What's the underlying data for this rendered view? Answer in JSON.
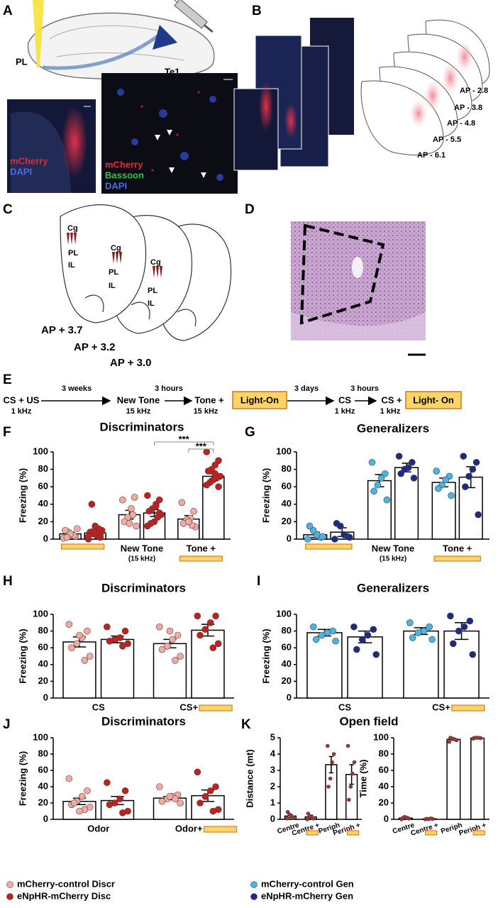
{
  "panel_letters": [
    "A",
    "B",
    "C",
    "D",
    "E",
    "F",
    "G",
    "H",
    "I",
    "J",
    "K"
  ],
  "panel_A": {
    "schematic": [
      "PL",
      "Te1"
    ],
    "image_1": [
      "mCherry",
      "DAPI"
    ],
    "image_2": [
      "mCherry",
      "Bassoon",
      "DAPI"
    ]
  },
  "panel_B": {
    "sections": [
      "AP - 2.8",
      "AP - 3.8",
      "AP - 4.8",
      "AP - 5.5",
      "AP - 6.1"
    ]
  },
  "panel_C": {
    "sections": [
      {
        "regions": [
          "Cg",
          "PL",
          "IL"
        ],
        "label": "AP + 3.7"
      },
      {
        "regions": [
          "Cg",
          "PL",
          "IL"
        ],
        "label": "AP + 3.2"
      },
      {
        "regions": [
          "Cg",
          "PL",
          "IL"
        ],
        "label": "AP + 3.0"
      }
    ]
  },
  "timeline": {
    "steps": [
      {
        "text": "CS + US",
        "sub": "1 kHz"
      },
      {
        "text": "New Tone",
        "sub": "15 kHz"
      },
      {
        "text": "Tone +",
        "sub": "15 kHz",
        "light": "Light-On"
      },
      {
        "text": "CS",
        "sub": "1 kHz"
      },
      {
        "text": "CS +",
        "sub": "1 kHz",
        "light": "Light- On"
      }
    ],
    "intervals": [
      "3 weeks",
      "3 hours",
      "3 days",
      "3 hours"
    ]
  },
  "chart_data": [
    {
      "type": "bar",
      "title": "Discriminators",
      "ylabel": "Freezing (%)",
      "ylim": [
        0,
        100
      ],
      "yticks": [
        0,
        20,
        40,
        60,
        80,
        100
      ],
      "categories": [
        null,
        "New Tone",
        "Tone +"
      ],
      "category_notes": [
        null,
        "(15 kHz)",
        null
      ],
      "light_on": [
        true,
        false,
        true
      ],
      "light_position": "below",
      "series": [
        {
          "color": "#f4aaa0",
          "values": [
            6,
            28,
            23
          ],
          "errors": [
            2,
            5,
            4
          ],
          "points": [
            [
              1,
              3,
              5,
              8,
              10,
              12,
              4,
              6,
              2
            ],
            [
              45,
              48,
              35,
              25,
              20,
              15,
              28,
              18
            ],
            [
              42,
              32,
              24,
              22,
              18,
              14,
              16,
              20
            ]
          ]
        },
        {
          "color": "#c0201e",
          "values": [
            7,
            30,
            72
          ],
          "errors": [
            3,
            4,
            3
          ],
          "points": [
            [
              0,
              2,
              4,
              6,
              8,
              10,
              12,
              15,
              40,
              3,
              5,
              7,
              9
            ],
            [
              50,
              45,
              40,
              35,
              32,
              28,
              25,
              20,
              18,
              15,
              30,
              38
            ],
            [
              100,
              90,
              85,
              80,
              78,
              72,
              70,
              68,
              65,
              62,
              60,
              75
            ]
          ]
        }
      ],
      "annotations": [
        "***",
        "***"
      ]
    },
    {
      "type": "bar",
      "title": "Generalizers",
      "ylabel": "Freezing (%)",
      "ylim": [
        0,
        100
      ],
      "yticks": [
        0,
        20,
        40,
        60,
        80,
        100
      ],
      "categories": [
        null,
        "New Tone",
        "Tone +"
      ],
      "category_notes": [
        null,
        "(15 kHz)",
        null
      ],
      "light_on": [
        true,
        false,
        true
      ],
      "light_position": "below",
      "series": [
        {
          "color": "#4db3e0",
          "values": [
            5,
            67,
            65
          ],
          "errors": [
            3,
            7,
            5
          ],
          "points": [
            [
              0,
              2,
              5,
              10,
              15,
              3
            ],
            [
              88,
              75,
              70,
              62,
              55,
              45
            ],
            [
              78,
              72,
              68,
              62,
              58,
              50
            ]
          ]
        },
        {
          "color": "#1f2a80",
          "values": [
            8,
            82,
            71
          ],
          "errors": [
            5,
            5,
            12
          ],
          "points": [
            [
              0,
              3,
              5,
              15,
              18,
              2
            ],
            [
              95,
              88,
              82,
              80,
              75,
              70
            ],
            [
              95,
              88,
              80,
              72,
              60,
              28
            ]
          ]
        }
      ]
    },
    {
      "type": "bar",
      "title": "Discriminators",
      "ylabel": "Freezing (%)",
      "ylim": [
        0,
        100
      ],
      "yticks": [
        0,
        20,
        40,
        60,
        80,
        100
      ],
      "categories": [
        "CS",
        "CS+"
      ],
      "light_on": [
        false,
        true
      ],
      "light_position": "after",
      "series": [
        {
          "color": "#f4aaa0",
          "values": [
            67,
            65
          ],
          "errors": [
            6,
            5
          ],
          "points": [
            [
              88,
              80,
              72,
              65,
              60,
              50,
              45,
              75
            ],
            [
              85,
              75,
              70,
              62,
              58,
              50,
              45,
              80
            ]
          ]
        },
        {
          "color": "#c0201e",
          "values": [
            70,
            81
          ],
          "errors": [
            4,
            7
          ],
          "points": [
            [
              85,
              80,
              72,
              70,
              68,
              65,
              62
            ],
            [
              98,
              98,
              90,
              82,
              75,
              65,
              60
            ]
          ]
        }
      ]
    },
    {
      "type": "bar",
      "title": "Generalizers",
      "ylabel": "Freezing (%)",
      "ylim": [
        0,
        100
      ],
      "yticks": [
        0,
        20,
        40,
        60,
        80,
        100
      ],
      "categories": [
        "CS",
        "CS+"
      ],
      "light_on": [
        false,
        true
      ],
      "light_position": "after",
      "series": [
        {
          "color": "#4db3e0",
          "values": [
            78,
            80
          ],
          "errors": [
            4,
            4
          ],
          "points": [
            [
              85,
              80,
              78,
              75,
              70,
              68
            ],
            [
              90,
              85,
              80,
              78,
              72,
              70
            ]
          ]
        },
        {
          "color": "#1f2a80",
          "values": [
            73,
            80
          ],
          "errors": [
            7,
            10
          ],
          "points": [
            [
              85,
              82,
              75,
              70,
              58,
              52
            ],
            [
              98,
              92,
              85,
              80,
              65,
              52
            ]
          ]
        }
      ]
    },
    {
      "type": "bar",
      "title": "Discriminators",
      "ylabel": "Freezing (%)",
      "ylim": [
        0,
        100
      ],
      "yticks": [
        0,
        20,
        40,
        60,
        80,
        100
      ],
      "categories": [
        "Odor",
        "Odor+"
      ],
      "light_on": [
        false,
        true
      ],
      "light_position": "after",
      "series": [
        {
          "color": "#f4aaa0",
          "values": [
            22,
            26
          ],
          "errors": [
            4,
            2
          ],
          "points": [
            [
              50,
              35,
              28,
              22,
              18,
              15,
              12,
              10,
              20
            ],
            [
              40,
              30,
              28,
              25,
              22,
              20,
              25,
              28
            ]
          ]
        },
        {
          "color": "#c0201e",
          "values": [
            23,
            29
          ],
          "errors": [
            5,
            7
          ],
          "points": [
            [
              45,
              35,
              25,
              20,
              18,
              10,
              8
            ],
            [
              58,
              40,
              35,
              28,
              20,
              12,
              10
            ]
          ]
        }
      ]
    },
    {
      "type": "bar",
      "title": "Open field",
      "ylabel": "Distance (mt)",
      "ylim": [
        0,
        5
      ],
      "yticks": [
        0,
        1,
        2,
        3,
        4,
        5
      ],
      "categories": [
        "Centre",
        "Centre +",
        "Periph",
        "Periph +"
      ],
      "light_on": [
        false,
        true,
        false,
        true
      ],
      "light_position": "below",
      "series": [
        {
          "color": "#a8322d",
          "values": [
            0.2,
            0.15,
            3.35,
            2.75
          ],
          "errors": [
            0.1,
            0.1,
            0.5,
            0.6
          ],
          "points": [
            [
              0.05,
              0.1,
              0.2,
              0.3,
              0.45
            ],
            [
              0,
              0.05,
              0.1,
              0.2,
              0.35
            ],
            [
              4.5,
              4,
              3.5,
              2.5,
              2
            ],
            [
              4.5,
              3.5,
              2.8,
              2,
              1.2
            ]
          ]
        }
      ]
    },
    {
      "type": "bar",
      "ylabel": "Time (%)",
      "ylim": [
        0,
        100
      ],
      "yticks": [
        0,
        20,
        40,
        60,
        80,
        100
      ],
      "categories": [
        "Centre",
        "Centre +",
        "Periph",
        "Periph +"
      ],
      "light_on": [
        false,
        true,
        false,
        true
      ],
      "light_position": "below",
      "series": [
        {
          "color": "#a8322d",
          "values": [
            1.5,
            0.5,
            98,
            99.5
          ],
          "errors": [
            0.5,
            0.3,
            1,
            0.3
          ],
          "points": [
            [
              0,
              1,
              2,
              3,
              1.5
            ],
            [
              0,
              0.5,
              1,
              0.3,
              0.6
            ],
            [
              95,
              97,
              98,
              99,
              100
            ],
            [
              99,
              99.5,
              100,
              100,
              99.8
            ]
          ]
        }
      ]
    }
  ],
  "legend": [
    {
      "name": "mCherry-control Discr",
      "color": "#f4aaa0"
    },
    {
      "name": "eNpHR-mCherry Disc",
      "color": "#c0201e"
    },
    {
      "name": "mCherry-control Gen",
      "color": "#4db3e0"
    },
    {
      "name": "eNpHR-mCherry Gen",
      "color": "#1f2a80"
    }
  ]
}
